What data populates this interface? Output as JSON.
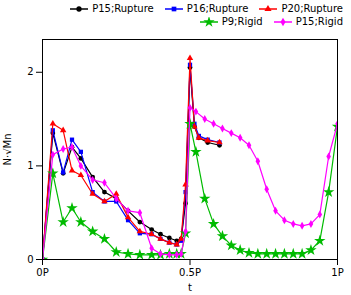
{
  "chart_data": {
    "type": "line",
    "xlabel": "t",
    "ylabel": "N·√Mn",
    "xlim": [
      0,
      1.0
    ],
    "ylim": [
      0,
      2.35
    ],
    "xticks": [
      {
        "value": 0,
        "label": "0P"
      },
      {
        "value": 0.5,
        "label": "0.5P"
      },
      {
        "value": 1.0,
        "label": "1P"
      }
    ],
    "yticks": [
      0,
      1,
      2
    ],
    "grid": false,
    "legend": "upper right",
    "series": [
      {
        "name": "P15;Rupture",
        "color": "#000000",
        "marker": "circle",
        "x": [
          0.0,
          0.035,
          0.07,
          0.1,
          0.13,
          0.17,
          0.21,
          0.25,
          0.29,
          0.33,
          0.37,
          0.4,
          0.43,
          0.455,
          0.47,
          0.485,
          0.5,
          0.515,
          0.53,
          0.56,
          0.6
        ],
        "values": [
          0.0,
          1.35,
          0.92,
          1.2,
          1.08,
          0.88,
          0.72,
          0.65,
          0.52,
          0.4,
          0.32,
          0.27,
          0.23,
          0.2,
          0.22,
          0.6,
          2.05,
          1.42,
          1.3,
          1.25,
          1.22
        ]
      },
      {
        "name": "P16;Rupture",
        "color": "#0000FF",
        "marker": "square",
        "x": [
          0.0,
          0.035,
          0.07,
          0.1,
          0.13,
          0.17,
          0.21,
          0.25,
          0.29,
          0.33,
          0.37,
          0.4,
          0.43,
          0.455,
          0.47,
          0.485,
          0.5,
          0.515,
          0.53,
          0.56,
          0.6
        ],
        "values": [
          0.0,
          1.38,
          0.93,
          1.28,
          1.15,
          0.72,
          0.62,
          0.62,
          0.42,
          0.28,
          0.27,
          0.22,
          0.18,
          0.16,
          0.2,
          0.72,
          2.08,
          1.45,
          1.32,
          1.28,
          1.25
        ]
      },
      {
        "name": "P20;Rupture",
        "color": "#FF0000",
        "marker": "triangle",
        "x": [
          0.0,
          0.035,
          0.07,
          0.1,
          0.13,
          0.17,
          0.21,
          0.25,
          0.29,
          0.33,
          0.37,
          0.4,
          0.43,
          0.455,
          0.47,
          0.485,
          0.5,
          0.515,
          0.53,
          0.56,
          0.6
        ],
        "values": [
          0.0,
          1.45,
          1.38,
          0.95,
          0.9,
          0.7,
          0.62,
          0.7,
          0.45,
          0.3,
          0.27,
          0.22,
          0.18,
          0.16,
          0.22,
          0.8,
          2.15,
          1.42,
          1.3,
          1.27,
          1.25
        ]
      },
      {
        "name": "P9;Rigid",
        "color": "#00BB00",
        "marker": "star",
        "x": [
          0.0,
          0.035,
          0.07,
          0.1,
          0.13,
          0.17,
          0.21,
          0.25,
          0.29,
          0.33,
          0.37,
          0.4,
          0.43,
          0.455,
          0.47,
          0.485,
          0.5,
          0.52,
          0.55,
          0.58,
          0.61,
          0.64,
          0.67,
          0.7,
          0.73,
          0.76,
          0.79,
          0.82,
          0.85,
          0.88,
          0.91,
          0.94,
          0.97,
          1.0
        ],
        "values": [
          0.0,
          0.92,
          0.4,
          0.55,
          0.4,
          0.3,
          0.22,
          0.08,
          0.06,
          0.05,
          0.05,
          0.05,
          0.06,
          0.06,
          0.06,
          0.28,
          1.45,
          1.15,
          0.65,
          0.38,
          0.25,
          0.15,
          0.1,
          0.07,
          0.06,
          0.06,
          0.06,
          0.06,
          0.06,
          0.06,
          0.1,
          0.2,
          0.72,
          1.42
        ]
      },
      {
        "name": "P15;Rigid",
        "color": "#FF00FF",
        "marker": "diamond",
        "x": [
          0.0,
          0.035,
          0.07,
          0.1,
          0.13,
          0.17,
          0.21,
          0.25,
          0.29,
          0.33,
          0.37,
          0.4,
          0.43,
          0.455,
          0.47,
          0.485,
          0.5,
          0.52,
          0.55,
          0.58,
          0.61,
          0.64,
          0.67,
          0.7,
          0.73,
          0.76,
          0.79,
          0.82,
          0.85,
          0.88,
          0.91,
          0.94,
          0.97,
          1.0
        ],
        "values": [
          0.0,
          1.12,
          1.18,
          1.2,
          1.0,
          0.85,
          0.82,
          0.65,
          0.52,
          0.5,
          0.12,
          0.06,
          0.05,
          0.05,
          0.06,
          0.3,
          1.62,
          1.58,
          1.5,
          1.45,
          1.4,
          1.35,
          1.3,
          1.22,
          1.05,
          0.75,
          0.52,
          0.42,
          0.38,
          0.36,
          0.38,
          0.48,
          1.1,
          1.45
        ]
      }
    ]
  }
}
